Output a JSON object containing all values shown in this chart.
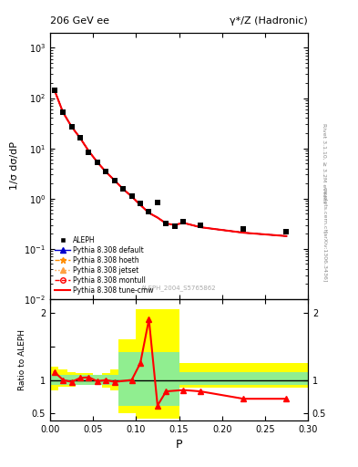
{
  "title_left": "206 GeV ee",
  "title_right": "γ*/Z (Hadronic)",
  "ylabel_main": "1/σ dσ/dP",
  "ylabel_ratio": "Ratio to ALEPH",
  "xlabel": "P",
  "rivet_label": "Rivet 3.1.10, ≥ 3.2M events",
  "arxiv_label": "[arXiv:1306.3436]",
  "mcplots_label": "mcplots.cern.ch",
  "ref_label": "ALEPH_2004_S5765862",
  "aleph_x": [
    0.005,
    0.015,
    0.025,
    0.035,
    0.045,
    0.055,
    0.065,
    0.075,
    0.085,
    0.095,
    0.105,
    0.115,
    0.125,
    0.135,
    0.145,
    0.155,
    0.175,
    0.225,
    0.275
  ],
  "aleph_y": [
    140.0,
    52.0,
    27.0,
    16.0,
    8.5,
    5.3,
    3.4,
    2.3,
    1.55,
    1.1,
    0.8,
    0.55,
    0.85,
    0.32,
    0.28,
    0.35,
    0.3,
    0.25,
    0.22
  ],
  "mc_x": [
    0.005,
    0.015,
    0.025,
    0.035,
    0.045,
    0.055,
    0.065,
    0.075,
    0.085,
    0.095,
    0.105,
    0.115,
    0.125,
    0.135,
    0.145,
    0.155,
    0.175,
    0.225,
    0.275
  ],
  "mc_y": [
    145.0,
    52.0,
    27.0,
    16.0,
    8.8,
    5.3,
    3.4,
    2.3,
    1.55,
    1.1,
    0.75,
    0.52,
    0.42,
    0.32,
    0.3,
    0.33,
    0.27,
    0.21,
    0.18
  ],
  "ratio_x": [
    0.005,
    0.015,
    0.025,
    0.035,
    0.045,
    0.055,
    0.065,
    0.075,
    0.095,
    0.105,
    0.115,
    0.125,
    0.135,
    0.155,
    0.175,
    0.225,
    0.275
  ],
  "ratio_y": [
    1.12,
    1.0,
    0.97,
    1.03,
    1.04,
    0.98,
    1.0,
    0.97,
    1.0,
    1.25,
    1.9,
    0.62,
    0.83,
    0.85,
    0.83,
    0.72,
    0.72
  ],
  "band_yellow_x_edges": [
    0.0,
    0.01,
    0.02,
    0.03,
    0.04,
    0.05,
    0.06,
    0.07,
    0.08,
    0.1,
    0.125,
    0.15,
    0.3
  ],
  "band_yellow_lo": [
    0.85,
    0.9,
    0.9,
    0.92,
    0.92,
    0.92,
    0.88,
    0.85,
    0.5,
    0.42,
    0.42,
    0.88,
    0.88
  ],
  "band_yellow_hi": [
    1.2,
    1.15,
    1.12,
    1.1,
    1.1,
    1.08,
    1.1,
    1.15,
    1.6,
    2.05,
    2.05,
    1.25,
    1.25
  ],
  "band_green_x_edges": [
    0.0,
    0.03,
    0.07,
    0.08,
    0.1,
    0.125,
    0.15,
    0.3
  ],
  "band_green_lo": [
    0.93,
    0.93,
    0.93,
    0.62,
    0.62,
    0.62,
    0.92,
    0.92
  ],
  "band_green_hi": [
    1.08,
    1.08,
    1.08,
    1.42,
    1.42,
    1.42,
    1.12,
    1.12
  ],
  "color_data": "#000000",
  "color_mc": "#ff0000",
  "color_yellow": "#ffff00",
  "color_green": "#90ee90",
  "xlim": [
    0.0,
    0.3
  ],
  "ylim_main": [
    0.01,
    2000.0
  ],
  "ylim_ratio": [
    0.4,
    2.2
  ]
}
